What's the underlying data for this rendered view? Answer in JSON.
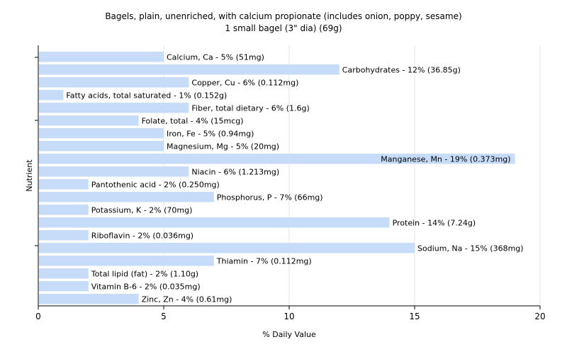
{
  "chart_data": {
    "type": "bar",
    "orientation": "horizontal",
    "title": "Bagels, plain, unenriched, with calcium propionate (includes onion, poppy, sesame)",
    "subtitle": "1 small bagel (3\" dia) (69g)",
    "xlabel": "% Daily Value",
    "ylabel": "Nutrient",
    "xlim": [
      0,
      20
    ],
    "xticks": [
      0,
      5,
      10,
      15,
      20
    ],
    "grid": "vertical",
    "bar_color": "#c6dcf8",
    "categories": [
      "Calcium, Ca",
      "Carbohydrates",
      "Copper, Cu",
      "Fatty acids, total saturated",
      "Fiber, total dietary",
      "Folate, total",
      "Iron, Fe",
      "Magnesium, Mg",
      "Manganese, Mn",
      "Niacin",
      "Pantothenic acid",
      "Phosphorus, P",
      "Potassium, K",
      "Protein",
      "Riboflavin",
      "Sodium, Na",
      "Thiamin",
      "Total lipid (fat)",
      "Vitamin B-6",
      "Zinc, Zn"
    ],
    "values": [
      5,
      12,
      6,
      1,
      6,
      4,
      5,
      5,
      19,
      6,
      2,
      7,
      2,
      14,
      2,
      15,
      7,
      2,
      2,
      4
    ],
    "labels": [
      "Calcium, Ca - 5% (51mg)",
      "Carbohydrates - 12% (36.85g)",
      "Copper, Cu - 6% (0.112mg)",
      "Fatty acids, total saturated - 1% (0.152g)",
      "Fiber, total dietary - 6% (1.6g)",
      "Folate, total - 4% (15mcg)",
      "Iron, Fe - 5% (0.94mg)",
      "Magnesium, Mg - 5% (20mg)",
      "Manganese, Mn - 19% (0.373mg)",
      "Niacin - 6% (1.213mg)",
      "Pantothenic acid - 2% (0.250mg)",
      "Phosphorus, P - 7% (66mg)",
      "Potassium, K - 2% (70mg)",
      "Protein - 14% (7.24g)",
      "Riboflavin - 2% (0.036mg)",
      "Sodium, Na - 15% (368mg)",
      "Thiamin - 7% (0.112mg)",
      "Total lipid (fat) - 2% (1.10g)",
      "Vitamin B-6 - 2% (0.035mg)",
      "Zinc, Zn - 4% (0.61mg)"
    ]
  }
}
